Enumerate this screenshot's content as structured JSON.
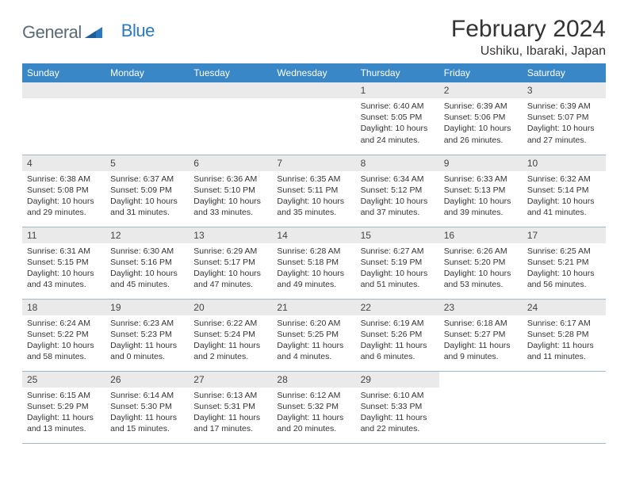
{
  "logo": {
    "part1": "General",
    "part2": "Blue"
  },
  "title": "February 2024",
  "location": "Ushiku, Ibaraki, Japan",
  "colors": {
    "header_bg": "#3a87c8",
    "header_text": "#ffffff",
    "daynum_bg": "#eaeaea",
    "cell_border": "#a0b8cc",
    "text": "#333333",
    "logo_gray": "#5a6a78",
    "logo_blue": "#2a78bf"
  },
  "weekdays": [
    "Sunday",
    "Monday",
    "Tuesday",
    "Wednesday",
    "Thursday",
    "Friday",
    "Saturday"
  ],
  "startOffset": 4,
  "days": [
    {
      "n": 1,
      "sunrise": "6:40 AM",
      "sunset": "5:05 PM",
      "dl": "10 hours and 24 minutes."
    },
    {
      "n": 2,
      "sunrise": "6:39 AM",
      "sunset": "5:06 PM",
      "dl": "10 hours and 26 minutes."
    },
    {
      "n": 3,
      "sunrise": "6:39 AM",
      "sunset": "5:07 PM",
      "dl": "10 hours and 27 minutes."
    },
    {
      "n": 4,
      "sunrise": "6:38 AM",
      "sunset": "5:08 PM",
      "dl": "10 hours and 29 minutes."
    },
    {
      "n": 5,
      "sunrise": "6:37 AM",
      "sunset": "5:09 PM",
      "dl": "10 hours and 31 minutes."
    },
    {
      "n": 6,
      "sunrise": "6:36 AM",
      "sunset": "5:10 PM",
      "dl": "10 hours and 33 minutes."
    },
    {
      "n": 7,
      "sunrise": "6:35 AM",
      "sunset": "5:11 PM",
      "dl": "10 hours and 35 minutes."
    },
    {
      "n": 8,
      "sunrise": "6:34 AM",
      "sunset": "5:12 PM",
      "dl": "10 hours and 37 minutes."
    },
    {
      "n": 9,
      "sunrise": "6:33 AM",
      "sunset": "5:13 PM",
      "dl": "10 hours and 39 minutes."
    },
    {
      "n": 10,
      "sunrise": "6:32 AM",
      "sunset": "5:14 PM",
      "dl": "10 hours and 41 minutes."
    },
    {
      "n": 11,
      "sunrise": "6:31 AM",
      "sunset": "5:15 PM",
      "dl": "10 hours and 43 minutes."
    },
    {
      "n": 12,
      "sunrise": "6:30 AM",
      "sunset": "5:16 PM",
      "dl": "10 hours and 45 minutes."
    },
    {
      "n": 13,
      "sunrise": "6:29 AM",
      "sunset": "5:17 PM",
      "dl": "10 hours and 47 minutes."
    },
    {
      "n": 14,
      "sunrise": "6:28 AM",
      "sunset": "5:18 PM",
      "dl": "10 hours and 49 minutes."
    },
    {
      "n": 15,
      "sunrise": "6:27 AM",
      "sunset": "5:19 PM",
      "dl": "10 hours and 51 minutes."
    },
    {
      "n": 16,
      "sunrise": "6:26 AM",
      "sunset": "5:20 PM",
      "dl": "10 hours and 53 minutes."
    },
    {
      "n": 17,
      "sunrise": "6:25 AM",
      "sunset": "5:21 PM",
      "dl": "10 hours and 56 minutes."
    },
    {
      "n": 18,
      "sunrise": "6:24 AM",
      "sunset": "5:22 PM",
      "dl": "10 hours and 58 minutes."
    },
    {
      "n": 19,
      "sunrise": "6:23 AM",
      "sunset": "5:23 PM",
      "dl": "11 hours and 0 minutes."
    },
    {
      "n": 20,
      "sunrise": "6:22 AM",
      "sunset": "5:24 PM",
      "dl": "11 hours and 2 minutes."
    },
    {
      "n": 21,
      "sunrise": "6:20 AM",
      "sunset": "5:25 PM",
      "dl": "11 hours and 4 minutes."
    },
    {
      "n": 22,
      "sunrise": "6:19 AM",
      "sunset": "5:26 PM",
      "dl": "11 hours and 6 minutes."
    },
    {
      "n": 23,
      "sunrise": "6:18 AM",
      "sunset": "5:27 PM",
      "dl": "11 hours and 9 minutes."
    },
    {
      "n": 24,
      "sunrise": "6:17 AM",
      "sunset": "5:28 PM",
      "dl": "11 hours and 11 minutes."
    },
    {
      "n": 25,
      "sunrise": "6:15 AM",
      "sunset": "5:29 PM",
      "dl": "11 hours and 13 minutes."
    },
    {
      "n": 26,
      "sunrise": "6:14 AM",
      "sunset": "5:30 PM",
      "dl": "11 hours and 15 minutes."
    },
    {
      "n": 27,
      "sunrise": "6:13 AM",
      "sunset": "5:31 PM",
      "dl": "11 hours and 17 minutes."
    },
    {
      "n": 28,
      "sunrise": "6:12 AM",
      "sunset": "5:32 PM",
      "dl": "11 hours and 20 minutes."
    },
    {
      "n": 29,
      "sunrise": "6:10 AM",
      "sunset": "5:33 PM",
      "dl": "11 hours and 22 minutes."
    }
  ],
  "labels": {
    "sunrise": "Sunrise:",
    "sunset": "Sunset:",
    "daylight": "Daylight:"
  }
}
